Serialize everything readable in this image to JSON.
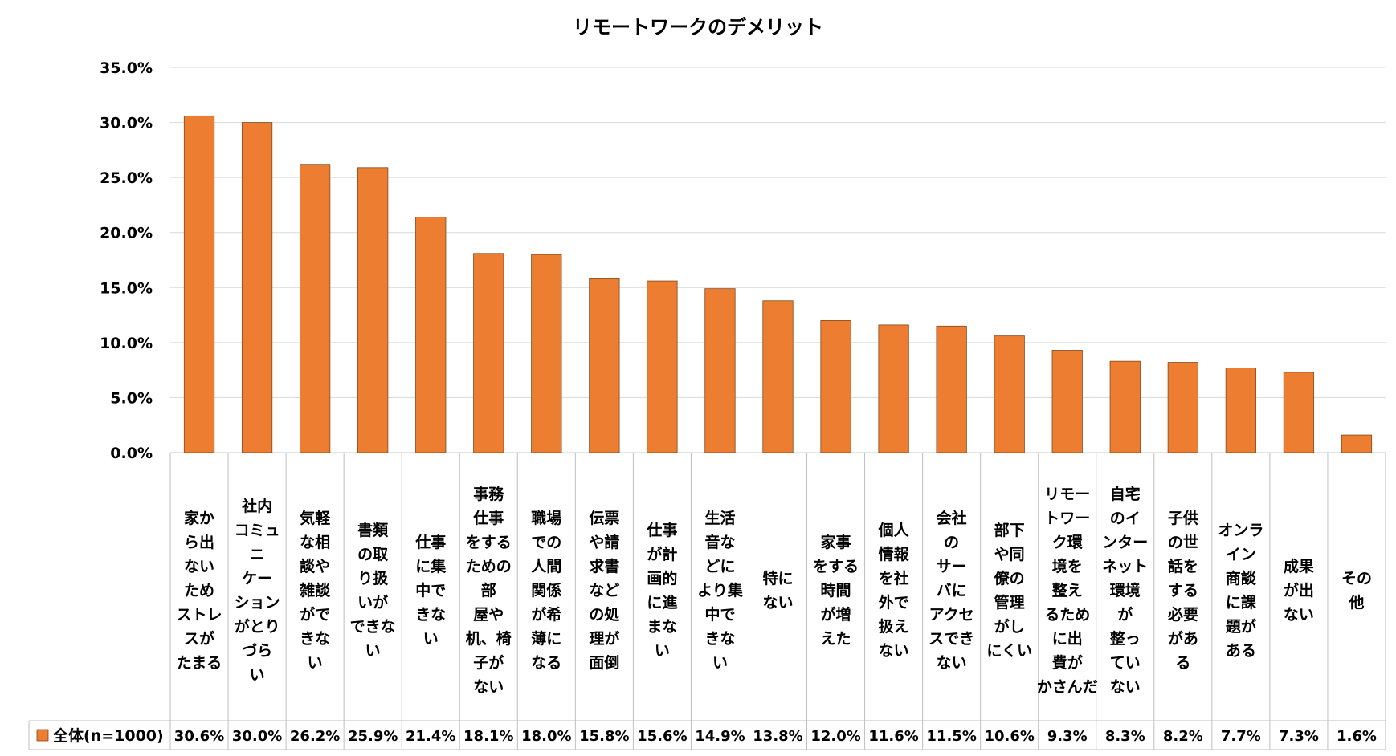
{
  "chart_data": {
    "type": "bar",
    "title": "リモートワークのデメリット",
    "categories": [
      "家から出ないためストレスがたまる",
      "社内コミュニケーションがとりづらい",
      "気軽な相談や雑談ができない",
      "書類の取り扱いができない",
      "仕事に集中できない",
      "事務仕事をするための部屋や机、椅子がない",
      "職場での人間関係が希薄になる",
      "伝票や請求書などの処理が面倒",
      "仕事が計画的に進まない",
      "生活音などにより集中できない",
      "特にない",
      "家事をする時間が増えた",
      "個人情報を社外で扱えない",
      "会社のサーバにアクセスできない",
      "部下や同僚の管理がしにくい",
      "リモートワーク環境を整えるために出費がかさんだ",
      "自宅のインターネット環境が整っていない",
      "子供の世話をする必要がある",
      "オンライン商談に課題がある",
      "成果が出ない",
      "その他"
    ],
    "category_lines": [
      [
        "家か",
        "ら出",
        "ない",
        "ため",
        "ストレ",
        "スが",
        "たまる"
      ],
      [
        "社内",
        "コミュ",
        "ニ",
        "ケー",
        "ション",
        "がとり",
        "づら",
        "い"
      ],
      [
        "気軽",
        "な相",
        "談や",
        "雑談",
        "がで",
        "きな",
        "い"
      ],
      [
        "書類",
        "の取",
        "り扱",
        "いが",
        "できな",
        "い"
      ],
      [
        "仕事",
        "に集",
        "中で",
        "きな",
        "い"
      ],
      [
        "事務",
        "仕事",
        "をする",
        "ための",
        "部",
        "屋や",
        "机、椅",
        "子が",
        "ない"
      ],
      [
        "職場",
        "での",
        "人間",
        "関係",
        "が希",
        "薄に",
        "なる"
      ],
      [
        "伝票",
        "や請",
        "求書",
        "など",
        "の処",
        "理が",
        "面倒"
      ],
      [
        "仕事",
        "が計",
        "画的",
        "に進",
        "まな",
        "い"
      ],
      [
        "生活",
        "音な",
        "どに",
        "より集",
        "中で",
        "きな",
        "い"
      ],
      [
        "特に",
        "ない"
      ],
      [
        "家事",
        "をする",
        "時間",
        "が増",
        "えた"
      ],
      [
        "個人",
        "情報",
        "を社",
        "外で",
        "扱え",
        "ない"
      ],
      [
        "会社",
        "の",
        "サー",
        "バに",
        "アクセ",
        "スでき",
        "ない"
      ],
      [
        "部下",
        "や同",
        "僚の",
        "管理",
        "がし",
        "にくい"
      ],
      [
        "リモー",
        "トワー",
        "ク環",
        "境を",
        "整え",
        "るため",
        "に出",
        "費が",
        "かさんだ"
      ],
      [
        "自宅",
        "のイ",
        "ンター",
        "ネット",
        "環境",
        "が",
        "整っ",
        "てい",
        "ない"
      ],
      [
        "子供",
        "の世",
        "話を",
        "する",
        "必要",
        "があ",
        "る"
      ],
      [
        "オンラ",
        "イン",
        "商談",
        "に課",
        "題が",
        "ある"
      ],
      [
        "成果",
        "が出",
        "ない"
      ],
      [
        "その",
        "他"
      ]
    ],
    "series": [
      {
        "name": "全体(n=1000)",
        "color": "#ed7d31",
        "values": [
          30.6,
          30.0,
          26.2,
          25.9,
          21.4,
          18.1,
          18.0,
          15.8,
          15.6,
          14.9,
          13.8,
          12.0,
          11.6,
          11.5,
          10.6,
          9.3,
          8.3,
          8.2,
          7.7,
          7.3,
          1.6
        ],
        "labels": [
          "30.6%",
          "30.0%",
          "26.2%",
          "25.9%",
          "21.4%",
          "18.1%",
          "18.0%",
          "15.8%",
          "15.6%",
          "14.9%",
          "13.8%",
          "12.0%",
          "11.6%",
          "11.5%",
          "10.6%",
          "9.3%",
          "8.3%",
          "8.2%",
          "7.7%",
          "7.3%",
          "1.6%"
        ]
      }
    ],
    "ylim": [
      0,
      35
    ],
    "yticks": [
      0,
      5,
      10,
      15,
      20,
      25,
      30,
      35
    ],
    "ytick_labels": [
      "0.0%",
      "5.0%",
      "10.0%",
      "15.0%",
      "20.0%",
      "25.0%",
      "30.0%",
      "35.0%"
    ],
    "xlabel": "",
    "ylabel": "",
    "grid": true,
    "legend": "data-table-left"
  }
}
